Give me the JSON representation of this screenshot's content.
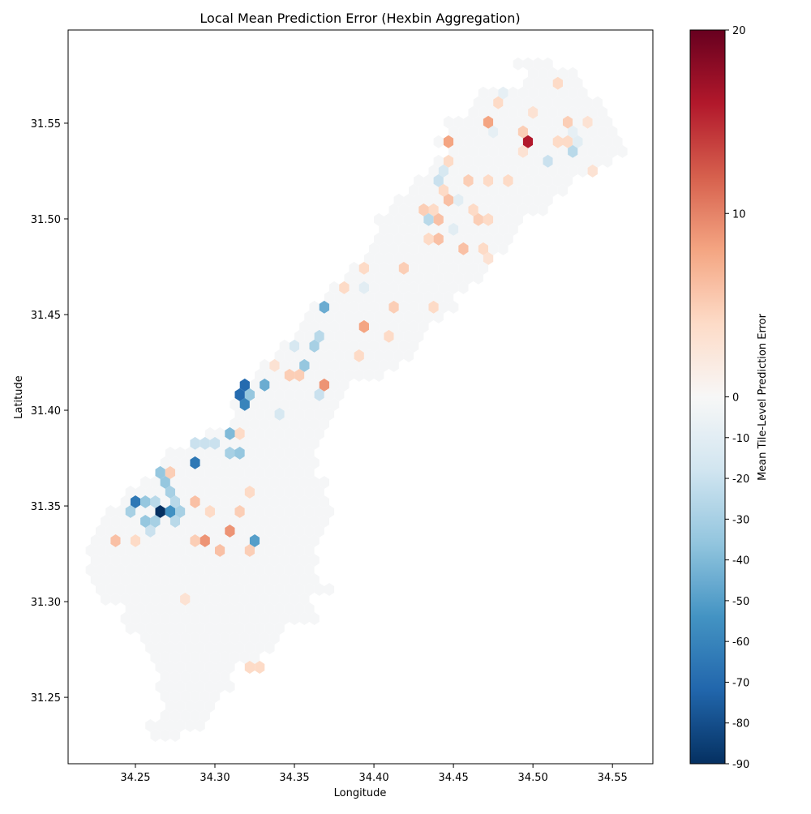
{
  "chart_data": {
    "type": "heatmap",
    "subtype": "hexbin",
    "title": "Local Mean Prediction Error (Hexbin Aggregation)",
    "xlabel": "Longitude",
    "ylabel": "Latitude",
    "xlim": [
      34.2077,
      34.5754
    ],
    "ylim": [
      31.2153,
      31.5987
    ],
    "xticks": [
      "34.25",
      "34.30",
      "34.35",
      "34.40",
      "34.45",
      "34.50",
      "34.55"
    ],
    "yticks": [
      "31.25",
      "31.30",
      "31.35",
      "31.40",
      "31.45",
      "31.50",
      "31.55"
    ],
    "grid": false,
    "colormap": "RdBu_r",
    "colormap_colors": [
      "#053061",
      "#2166ac",
      "#4393c3",
      "#92c5de",
      "#d1e5f0",
      "#f7f7f7",
      "#fddbc7",
      "#f4a582",
      "#d6604d",
      "#b2182b",
      "#67001f"
    ],
    "norm": {
      "vmin": -90,
      "vcenter": 0,
      "vmax": 20
    },
    "colorbar": {
      "label": "Mean Tile-Level Prediction Error",
      "ticks": [
        "20",
        "10",
        "0",
        "-10",
        "-20",
        "-30",
        "-40",
        "-50",
        "-60",
        "-70",
        "-80",
        "-90"
      ]
    },
    "background_value": -1,
    "filled_rows_lat_lon_span": [
      [
        31.5814,
        34.491,
        34.509
      ],
      [
        31.5763,
        34.501,
        34.524
      ],
      [
        31.5712,
        34.499,
        34.527
      ],
      [
        31.5661,
        34.468,
        34.532
      ],
      [
        31.561,
        34.466,
        34.542
      ],
      [
        31.5559,
        34.463,
        34.545
      ],
      [
        31.5508,
        34.45,
        34.55
      ],
      [
        31.5458,
        34.45,
        34.552
      ],
      [
        31.5407,
        34.443,
        34.555
      ],
      [
        31.5356,
        34.45,
        34.558
      ],
      [
        31.5305,
        34.44,
        34.545
      ],
      [
        31.5254,
        34.435,
        34.54
      ],
      [
        31.5203,
        34.43,
        34.522
      ],
      [
        31.5153,
        34.425,
        34.517
      ],
      [
        31.5102,
        34.417,
        34.507
      ],
      [
        31.5051,
        34.412,
        34.504
      ],
      [
        31.5,
        34.405,
        34.491
      ],
      [
        31.4949,
        34.407,
        34.489
      ],
      [
        31.4898,
        34.402,
        34.484
      ],
      [
        31.4847,
        34.397,
        34.479
      ],
      [
        31.4797,
        34.394,
        34.471
      ],
      [
        31.4746,
        34.389,
        34.466
      ],
      [
        31.4695,
        34.382,
        34.463
      ],
      [
        31.4644,
        34.374,
        34.458
      ],
      [
        31.4593,
        34.369,
        34.45
      ],
      [
        31.4542,
        34.364,
        34.448
      ],
      [
        31.4492,
        34.359,
        34.443
      ],
      [
        31.4441,
        34.356,
        34.433
      ],
      [
        31.439,
        34.351,
        34.43
      ],
      [
        31.4339,
        34.346,
        34.428
      ],
      [
        31.4288,
        34.341,
        34.42
      ],
      [
        31.4237,
        34.333,
        34.415
      ],
      [
        31.4186,
        34.328,
        34.405
      ],
      [
        31.4136,
        34.326,
        34.384
      ],
      [
        31.4085,
        34.32,
        34.379
      ],
      [
        31.4034,
        34.315,
        34.374
      ],
      [
        31.3983,
        34.313,
        34.374
      ],
      [
        31.3932,
        34.31,
        34.369
      ],
      [
        31.3881,
        34.295,
        34.364
      ],
      [
        31.3831,
        34.285,
        34.364
      ],
      [
        31.378,
        34.272,
        34.361
      ],
      [
        31.3729,
        34.269,
        34.361
      ],
      [
        31.3678,
        34.264,
        34.361
      ],
      [
        31.3627,
        34.257,
        34.366
      ],
      [
        31.3576,
        34.249,
        34.366
      ],
      [
        31.3525,
        34.241,
        34.369
      ],
      [
        31.3475,
        34.236,
        34.369
      ],
      [
        31.3424,
        34.231,
        34.369
      ],
      [
        31.3373,
        34.226,
        34.366
      ],
      [
        31.3322,
        34.224,
        34.364
      ],
      [
        31.3271,
        34.224,
        34.361
      ],
      [
        31.322,
        34.222,
        34.361
      ],
      [
        31.3169,
        34.222,
        34.359
      ],
      [
        31.3119,
        34.224,
        34.361
      ],
      [
        31.3068,
        34.229,
        34.369
      ],
      [
        31.3017,
        34.234,
        34.356
      ],
      [
        31.2966,
        34.244,
        34.361
      ],
      [
        31.2915,
        34.244,
        34.361
      ],
      [
        31.2864,
        34.249,
        34.341
      ],
      [
        31.2814,
        34.257,
        34.338
      ],
      [
        31.2763,
        34.262,
        34.333
      ],
      [
        31.2712,
        34.264,
        34.328
      ],
      [
        31.2661,
        34.267,
        34.308
      ],
      [
        31.261,
        34.267,
        34.305
      ],
      [
        31.2559,
        34.267,
        34.308
      ],
      [
        31.2508,
        34.267,
        34.3
      ],
      [
        31.2458,
        34.269,
        34.3
      ],
      [
        31.2407,
        34.267,
        34.292
      ],
      [
        31.2356,
        34.262,
        34.29
      ],
      [
        31.2305,
        34.262,
        34.274
      ]
    ],
    "cells_lon_lat_value": [
      [
        34.4469,
        31.5403,
        8
      ],
      [
        34.4744,
        31.5504,
        8
      ],
      [
        34.4968,
        31.5403,
        16
      ],
      [
        34.48,
        31.5606,
        4
      ],
      [
        34.4943,
        31.5458,
        5
      ],
      [
        34.4943,
        31.5352,
        3
      ],
      [
        34.5249,
        31.5504,
        5
      ],
      [
        34.5361,
        31.5504,
        3
      ],
      [
        34.528,
        31.5352,
        -25
      ],
      [
        34.5081,
        31.5297,
        -20
      ],
      [
        34.5306,
        31.5403,
        -10
      ],
      [
        34.5219,
        31.5453,
        -8
      ],
      [
        34.4831,
        31.5665,
        -8
      ],
      [
        34.4775,
        31.5453,
        -8
      ],
      [
        34.4999,
        31.5559,
        3
      ],
      [
        34.5137,
        31.5403,
        4
      ],
      [
        34.5193,
        31.5403,
        4
      ],
      [
        34.5392,
        31.5246,
        3
      ],
      [
        34.5183,
        31.5712,
        4
      ],
      [
        34.4438,
        31.5254,
        -15
      ],
      [
        34.4413,
        31.5199,
        -20
      ],
      [
        34.4469,
        31.5301,
        4
      ],
      [
        34.4576,
        31.5199,
        5
      ],
      [
        34.4443,
        31.5148,
        4
      ],
      [
        34.4469,
        31.5097,
        6
      ],
      [
        34.4525,
        31.5097,
        -10
      ],
      [
        34.4744,
        31.5199,
        5
      ],
      [
        34.4693,
        31.5199,
        4
      ],
      [
        34.4856,
        31.5199,
        4
      ],
      [
        34.4331,
        31.5051,
        5
      ],
      [
        34.4387,
        31.5051,
        4
      ],
      [
        34.4356,
        31.4992,
        -25
      ],
      [
        34.4413,
        31.4992,
        6
      ],
      [
        34.4637,
        31.4992,
        5
      ],
      [
        34.4744,
        31.4992,
        4
      ],
      [
        34.4606,
        31.5047,
        4
      ],
      [
        34.4418,
        31.4894,
        6
      ],
      [
        34.4356,
        31.4894,
        4
      ],
      [
        34.455,
        31.4843,
        6
      ],
      [
        34.4662,
        31.4843,
        4
      ],
      [
        34.4214,
        31.4737,
        5
      ],
      [
        34.4744,
        31.4788,
        3
      ],
      [
        34.4494,
        31.4945,
        -10
      ],
      [
        34.3658,
        31.4534,
        -45
      ],
      [
        34.3938,
        31.4428,
        8
      ],
      [
        34.3719,
        31.4127,
        9
      ],
      [
        34.3546,
        31.4225,
        -35
      ],
      [
        34.3602,
        31.4331,
        -30
      ],
      [
        34.3632,
        31.4377,
        -25
      ],
      [
        34.3495,
        31.4331,
        -15
      ],
      [
        34.3938,
        31.4737,
        4
      ],
      [
        34.3826,
        31.464,
        4
      ],
      [
        34.4107,
        31.4534,
        5
      ],
      [
        34.4387,
        31.4534,
        4
      ],
      [
        34.4081,
        31.4377,
        4
      ],
      [
        34.3908,
        31.428,
        4
      ],
      [
        34.3469,
        31.417,
        5
      ],
      [
        34.352,
        31.417,
        5
      ],
      [
        34.3382,
        31.4225,
        3
      ],
      [
        34.3632,
        31.4068,
        -20
      ],
      [
        34.3938,
        31.4631,
        -10
      ],
      [
        34.3408,
        31.397,
        -15
      ],
      [
        34.3214,
        31.4123,
        -70
      ],
      [
        34.3132,
        31.4072,
        -70
      ],
      [
        34.3189,
        31.4072,
        -35
      ],
      [
        34.3158,
        31.4021,
        -60
      ],
      [
        34.3326,
        31.4123,
        -45
      ],
      [
        34.3071,
        31.3869,
        -40
      ],
      [
        34.3132,
        31.3869,
        4
      ],
      [
        34.2883,
        31.3818,
        -20
      ],
      [
        34.2939,
        31.3818,
        -20
      ],
      [
        34.299,
        31.3818,
        -20
      ],
      [
        34.3102,
        31.3759,
        -30
      ],
      [
        34.3158,
        31.3759,
        -35
      ],
      [
        34.2883,
        31.3712,
        -65
      ],
      [
        34.2684,
        31.3665,
        -35
      ],
      [
        34.2745,
        31.3665,
        5
      ],
      [
        34.2714,
        31.361,
        -35
      ],
      [
        34.274,
        31.3559,
        -30
      ],
      [
        34.249,
        31.3509,
        -65
      ],
      [
        34.2546,
        31.3509,
        -35
      ],
      [
        34.2602,
        31.3509,
        -25
      ],
      [
        34.277,
        31.3509,
        -25
      ],
      [
        34.2883,
        31.3509,
        6
      ],
      [
        34.2684,
        31.3458,
        -90
      ],
      [
        34.274,
        31.3458,
        -55
      ],
      [
        34.2801,
        31.3458,
        -30
      ],
      [
        34.2459,
        31.3458,
        -30
      ],
      [
        34.2546,
        31.3407,
        -35
      ],
      [
        34.2602,
        31.3407,
        -30
      ],
      [
        34.277,
        31.3407,
        -25
      ],
      [
        34.2577,
        31.3356,
        -20
      ],
      [
        34.2964,
        31.3458,
        4
      ],
      [
        34.3127,
        31.3458,
        5
      ],
      [
        34.3076,
        31.3356,
        9
      ],
      [
        34.2939,
        31.3305,
        9
      ],
      [
        34.2883,
        31.3305,
        5
      ],
      [
        34.2378,
        31.3305,
        6
      ],
      [
        34.249,
        31.3305,
        4
      ],
      [
        34.327,
        31.3305,
        -50
      ],
      [
        34.302,
        31.325,
        6
      ],
      [
        34.3189,
        31.325,
        5
      ],
      [
        34.3189,
        31.3559,
        4
      ],
      [
        34.3214,
        31.267,
        4
      ],
      [
        34.3275,
        31.267,
        4
      ],
      [
        34.2796,
        31.3038,
        3
      ]
    ]
  }
}
